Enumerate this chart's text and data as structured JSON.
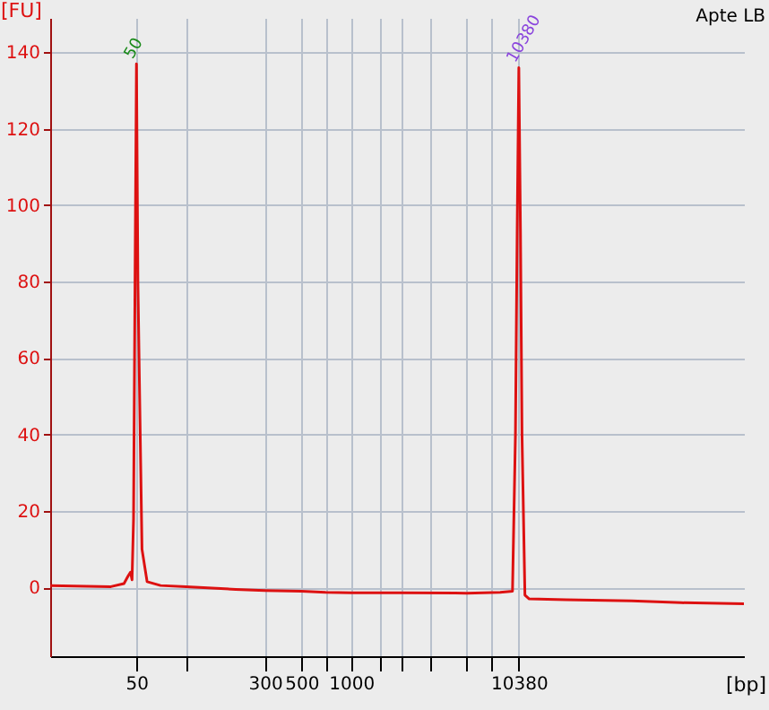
{
  "chart_data": {
    "type": "line",
    "title": "Apte LB",
    "xlabel": "[bp]",
    "ylabel": "[FU]",
    "x": [
      15,
      25,
      35,
      42,
      44.5,
      46,
      47,
      48,
      49,
      50,
      51,
      52,
      54,
      58,
      70,
      100,
      200,
      300,
      500,
      700,
      1000,
      2000,
      5000,
      8000,
      9500,
      9900,
      10140,
      10380,
      10620,
      10850,
      11300,
      12000,
      20000,
      50000,
      100000,
      240000
    ],
    "series": [
      {
        "color": "#dd1111",
        "values": [
          0.5,
          0.3,
          0.2,
          1,
          3,
          4,
          2,
          18,
          80,
          137,
          80,
          56,
          10,
          1.5,
          0.5,
          0.2,
          -0.5,
          -0.8,
          -1,
          -1.3,
          -1.4,
          -1.4,
          -1.5,
          -1.3,
          -1,
          40,
          93,
          136,
          93,
          40,
          -2,
          -3,
          -3.2,
          -3.5,
          -4,
          -4.3
        ]
      }
    ],
    "xlim": [
      15,
      240000
    ],
    "xticks": [
      50,
      {
        "value": 100,
        "label": null
      },
      300,
      500,
      {
        "value": 700,
        "label": null
      },
      1000,
      {
        "value": 1500,
        "label": null
      },
      {
        "value": 2000,
        "label": null
      },
      {
        "value": 3000,
        "label": null
      },
      {
        "value": 5000,
        "label": null
      },
      {
        "value": 7000,
        "label": null
      },
      10380
    ],
    "ylim": [
      -18,
      149
    ],
    "yticks": [
      0,
      20,
      40,
      60,
      80,
      100,
      120,
      140
    ],
    "annotations": [
      {
        "text": "50",
        "x": 50,
        "y": 137
      },
      {
        "text": "10380",
        "x": 10380,
        "y": 136
      }
    ],
    "log": "x",
    "grid": true,
    "marker": "none",
    "line_style": "solid"
  }
}
